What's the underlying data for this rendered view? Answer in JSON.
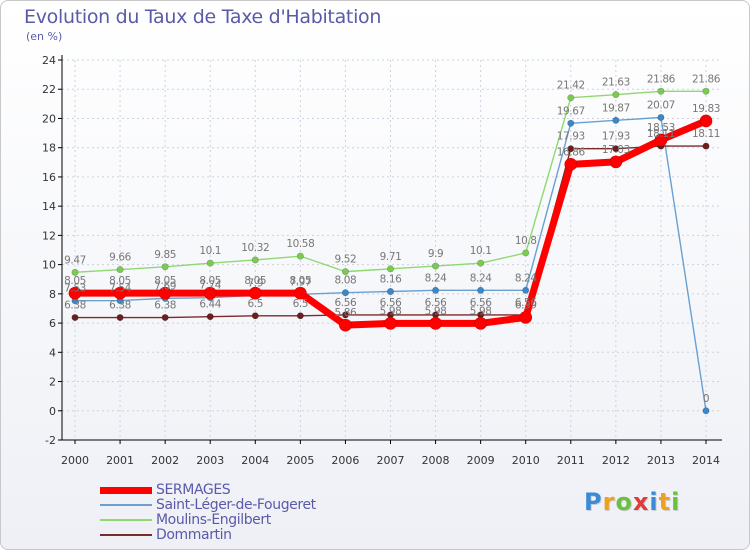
{
  "colors": {
    "title": "#5a5aa8",
    "axis": "#000000",
    "grid": "#d0d0e0",
    "value_label": "#777777"
  },
  "chart_data": {
    "type": "line",
    "title": "Evolution du Taux de Taxe d'Habitation",
    "ylabel": "(en %)",
    "xlabel": "",
    "x": [
      "2000",
      "2001",
      "2002",
      "2003",
      "2004",
      "2005",
      "2006",
      "2007",
      "2008",
      "2009",
      "2010",
      "2011",
      "2012",
      "2013",
      "2014"
    ],
    "ylim": [
      -2,
      24
    ],
    "yticks": [
      -2,
      0,
      2,
      4,
      6,
      8,
      10,
      12,
      14,
      16,
      18,
      20,
      22,
      24
    ],
    "grid": true,
    "series": [
      {
        "name": "SERMAGES",
        "color": "#ff0000",
        "marker_color": "#ff0000",
        "width": "thick",
        "values": [
          8.05,
          8.05,
          8.05,
          8.05,
          8.05,
          8.05,
          5.86,
          5.98,
          5.98,
          5.98,
          6.39,
          16.86,
          17.03,
          18.53,
          19.83
        ],
        "labels": [
          "8.05",
          "8.05",
          "8.05",
          "8.05",
          "8.05",
          "8.05",
          "5.86",
          "5.98",
          "5.98",
          "5.98",
          "6.39",
          "16.86",
          "17.03",
          "18.53",
          "19.83"
        ]
      },
      {
        "name": "Saint-Léger-de-Fougeret",
        "color": "#6aa0d0",
        "marker_color": "#3a88c8",
        "width": "thin",
        "values": [
          7.53,
          7.54,
          7.69,
          7.74,
          7.9,
          7.97,
          8.08,
          8.16,
          8.24,
          8.24,
          8.24,
          19.67,
          19.87,
          20.07,
          0
        ],
        "labels": [
          "7.53",
          "7.54",
          "7.69",
          "7.74",
          "7.9",
          "7.97",
          "8.08",
          "8.16",
          "8.24",
          "8.24",
          "8.24",
          "19.67",
          "19.87",
          "20.07",
          "0"
        ]
      },
      {
        "name": "Moulins-Engilbert",
        "color": "#90d870",
        "marker_color": "#7acc50",
        "width": "thin",
        "values": [
          9.47,
          9.66,
          9.85,
          10.1,
          10.32,
          10.58,
          9.52,
          9.71,
          9.9,
          10.1,
          10.8,
          21.42,
          21.63,
          21.86,
          21.86
        ],
        "labels": [
          "9.47",
          "9.66",
          "9.85",
          "10.1",
          "10.32",
          "10.58",
          "9.52",
          "9.71",
          "9.9",
          "10.1",
          "10.8",
          "21.42",
          "21.63",
          "21.86",
          "21.86"
        ]
      },
      {
        "name": "Dommartin",
        "color": "#7a2a2a",
        "marker_color": "#6a1e1e",
        "width": "thin",
        "values": [
          6.38,
          6.38,
          6.38,
          6.44,
          6.5,
          6.5,
          6.56,
          6.56,
          6.56,
          6.56,
          6.56,
          17.93,
          17.93,
          18.11,
          18.11
        ],
        "labels": [
          "6.38",
          "6.38",
          "6.38",
          "6.44",
          "6.5",
          "6.5",
          "6.56",
          "6.56",
          "6.56",
          "6.56",
          "6.56",
          "17.93",
          "17.93",
          "18.11",
          "18.11"
        ]
      }
    ]
  },
  "legend": {
    "items": [
      {
        "label": "SERMAGES",
        "color": "#ff0000",
        "thickness": 7
      },
      {
        "label": "Saint-Léger-de-Fougeret",
        "color": "#6aa0d0",
        "thickness": 2
      },
      {
        "label": "Moulins-Engilbert",
        "color": "#90d870",
        "thickness": 2
      },
      {
        "label": "Dommartin",
        "color": "#7a2a2a",
        "thickness": 2
      }
    ]
  },
  "brand": {
    "letters": [
      {
        "char": "P",
        "color": "#3a8ad6"
      },
      {
        "char": "r",
        "color": "#f0a020"
      },
      {
        "char": "o",
        "color": "#6cc040"
      },
      {
        "char": "x",
        "color": "#e03a3a"
      },
      {
        "char": "i",
        "color": "#3a8ad6"
      },
      {
        "char": "t",
        "color": "#f0a020"
      },
      {
        "char": "i",
        "color": "#6cc040"
      }
    ]
  }
}
